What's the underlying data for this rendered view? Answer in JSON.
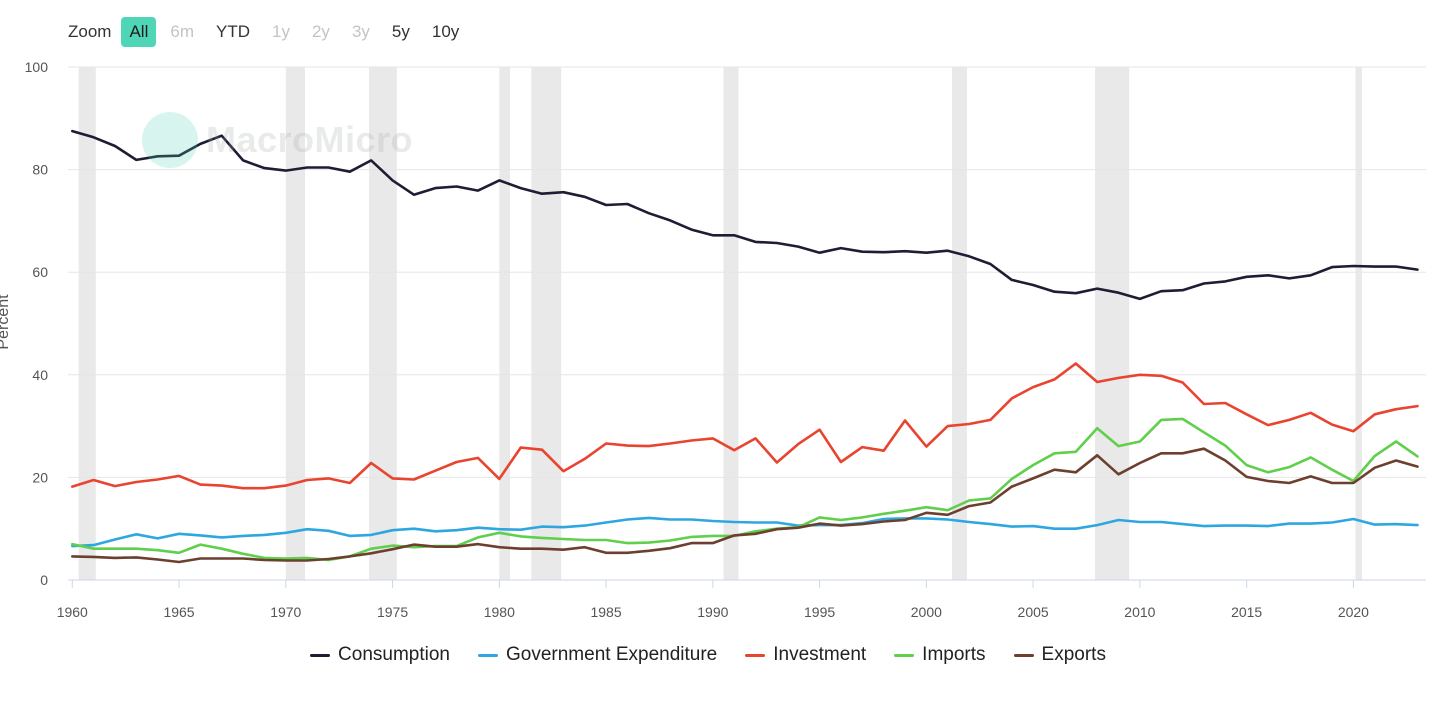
{
  "zoom": {
    "label": "Zoom",
    "buttons": [
      {
        "label": "All",
        "state": "active"
      },
      {
        "label": "6m",
        "state": "disabled"
      },
      {
        "label": "YTD",
        "state": "enabled"
      },
      {
        "label": "1y",
        "state": "disabled"
      },
      {
        "label": "2y",
        "state": "disabled"
      },
      {
        "label": "3y",
        "state": "disabled"
      },
      {
        "label": "5y",
        "state": "enabled"
      },
      {
        "label": "10y",
        "state": "enabled"
      }
    ]
  },
  "watermark": "MacroMicro",
  "colors": {
    "Consumption": "#1f1d33",
    "Government Expenditure": "#2ea7e0",
    "Investment": "#e8442f",
    "Imports": "#5fcf4c",
    "Exports": "#6d3f2f",
    "recession": "#e9e9e9",
    "grid": "#e6e6e6",
    "accent": "#4fd6b6"
  },
  "chart_data": {
    "type": "line",
    "title": "",
    "xlabel": "",
    "ylabel": "Percent",
    "xlim": [
      1959.8,
      2023.4
    ],
    "ylim": [
      0,
      100
    ],
    "yticks": [
      0,
      20,
      40,
      60,
      80,
      100
    ],
    "xticks": [
      1960,
      1965,
      1970,
      1975,
      1980,
      1985,
      1990,
      1995,
      2000,
      2005,
      2010,
      2015,
      2020
    ],
    "grid": true,
    "legend_position": "bottom-center",
    "recession_bands": [
      [
        1960.3,
        1961.1
      ],
      [
        1970.0,
        1970.9
      ],
      [
        1973.9,
        1975.2
      ],
      [
        1980.0,
        1980.5
      ],
      [
        1981.5,
        1982.9
      ],
      [
        1990.5,
        1991.2
      ],
      [
        2001.2,
        2001.9
      ],
      [
        2007.9,
        2009.5
      ],
      [
        2020.1,
        2020.4
      ]
    ],
    "x": [
      1960,
      1961,
      1962,
      1963,
      1964,
      1965,
      1966,
      1967,
      1968,
      1969,
      1970,
      1971,
      1972,
      1973,
      1974,
      1975,
      1976,
      1977,
      1978,
      1979,
      1980,
      1981,
      1982,
      1983,
      1984,
      1985,
      1986,
      1987,
      1988,
      1989,
      1990,
      1991,
      1992,
      1993,
      1994,
      1995,
      1996,
      1997,
      1998,
      1999,
      2000,
      2001,
      2002,
      2003,
      2004,
      2005,
      2006,
      2007,
      2008,
      2009,
      2010,
      2011,
      2012,
      2013,
      2014,
      2015,
      2016,
      2017,
      2018,
      2019,
      2020,
      2021,
      2022,
      2023
    ],
    "series": [
      {
        "name": "Consumption",
        "values": [
          87.5,
          86.3,
          84.6,
          81.9,
          82.6,
          82.7,
          85.0,
          86.6,
          81.8,
          80.3,
          79.8,
          80.4,
          80.4,
          79.6,
          81.8,
          77.9,
          75.1,
          76.4,
          76.7,
          75.9,
          77.9,
          76.4,
          75.3,
          75.6,
          74.7,
          73.1,
          73.3,
          71.5,
          70.1,
          68.3,
          67.2,
          67.2,
          65.9,
          65.7,
          65.0,
          63.8,
          64.7,
          64.0,
          63.9,
          64.1,
          63.8,
          64.2,
          63.1,
          61.6,
          58.5,
          57.5,
          56.2,
          55.9,
          56.8,
          56.0,
          54.8,
          56.3,
          56.5,
          57.8,
          58.2,
          59.1,
          59.4,
          58.8,
          59.4,
          61.0,
          61.2,
          61.1,
          61.1,
          60.5
        ]
      },
      {
        "name": "Government Expenditure",
        "values": [
          6.6,
          6.8,
          7.9,
          8.9,
          8.1,
          9.0,
          8.7,
          8.3,
          8.6,
          8.8,
          9.2,
          9.9,
          9.6,
          8.6,
          8.8,
          9.7,
          10.0,
          9.5,
          9.7,
          10.2,
          9.9,
          9.8,
          10.4,
          10.3,
          10.6,
          11.2,
          11.8,
          12.1,
          11.8,
          11.8,
          11.5,
          11.3,
          11.2,
          11.2,
          10.6,
          10.7,
          10.7,
          11.1,
          11.9,
          12.0,
          12.0,
          11.8,
          11.3,
          10.9,
          10.4,
          10.5,
          10.0,
          10.0,
          10.7,
          11.7,
          11.3,
          11.3,
          10.9,
          10.5,
          10.6,
          10.6,
          10.5,
          11.0,
          11.0,
          11.2,
          11.9,
          10.8,
          10.9,
          10.7
        ]
      },
      {
        "name": "Investment",
        "values": [
          18.2,
          19.5,
          18.3,
          19.1,
          19.6,
          20.3,
          18.6,
          18.4,
          17.9,
          17.9,
          18.4,
          19.5,
          19.8,
          18.9,
          22.8,
          19.8,
          19.6,
          21.3,
          23.0,
          23.8,
          19.7,
          25.8,
          25.4,
          21.2,
          23.6,
          26.6,
          26.2,
          26.1,
          26.6,
          27.2,
          27.6,
          25.3,
          27.6,
          22.9,
          26.5,
          29.3,
          23.0,
          25.9,
          25.2,
          31.1,
          26.0,
          30.0,
          30.4,
          31.2,
          35.4,
          37.6,
          39.1,
          42.2,
          38.6,
          39.4,
          40.0,
          39.8,
          38.5,
          34.3,
          34.5,
          32.3,
          30.2,
          31.2,
          32.6,
          30.3,
          29.0,
          32.3,
          33.3,
          33.9
        ]
      },
      {
        "name": "Imports",
        "values": [
          7.0,
          6.1,
          6.1,
          6.1,
          5.8,
          5.3,
          6.9,
          6.1,
          5.1,
          4.3,
          4.2,
          4.3,
          3.9,
          4.6,
          6.1,
          6.7,
          6.4,
          6.6,
          6.6,
          8.3,
          9.2,
          8.5,
          8.2,
          8.0,
          7.8,
          7.8,
          7.2,
          7.3,
          7.7,
          8.4,
          8.6,
          8.6,
          9.5,
          10.0,
          10.3,
          12.2,
          11.7,
          12.2,
          12.9,
          13.5,
          14.2,
          13.6,
          15.5,
          15.9,
          19.7,
          22.4,
          24.7,
          25.0,
          29.6,
          26.1,
          27.0,
          31.2,
          31.4,
          28.8,
          26.2,
          22.4,
          21.0,
          22.0,
          23.9,
          21.5,
          19.3,
          24.2,
          27.0,
          24.1
        ]
      },
      {
        "name": "Exports",
        "values": [
          4.6,
          4.5,
          4.3,
          4.4,
          4.0,
          3.5,
          4.2,
          4.2,
          4.2,
          3.9,
          3.8,
          3.8,
          4.1,
          4.6,
          5.2,
          6.0,
          6.9,
          6.5,
          6.5,
          7.0,
          6.4,
          6.1,
          6.1,
          5.9,
          6.4,
          5.3,
          5.3,
          5.7,
          6.2,
          7.2,
          7.2,
          8.7,
          9.0,
          9.9,
          10.2,
          11.0,
          10.6,
          10.9,
          11.4,
          11.7,
          13.1,
          12.7,
          14.4,
          15.1,
          18.2,
          19.8,
          21.5,
          21.0,
          24.3,
          20.6,
          22.8,
          24.7,
          24.7,
          25.6,
          23.3,
          20.1,
          19.3,
          18.9,
          20.2,
          18.9,
          18.9,
          21.9,
          23.3,
          22.1
        ]
      }
    ]
  }
}
